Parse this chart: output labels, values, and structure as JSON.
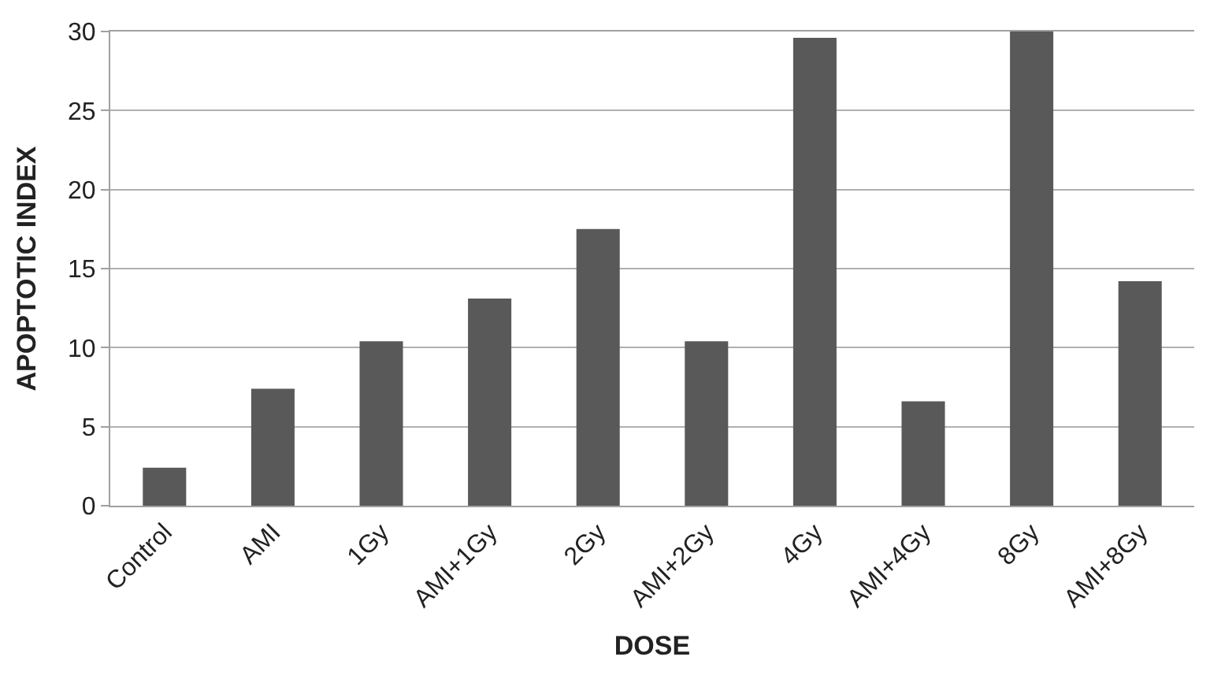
{
  "chart_data": {
    "type": "bar",
    "xlabel": "DOSE",
    "ylabel": "APOPTOTIC INDEX",
    "categories": [
      "Control",
      "AMI",
      "1Gy",
      "AMI+1Gy",
      "2Gy",
      "AMI+2Gy",
      "4Gy",
      "AMI+4Gy",
      "8Gy",
      "AMI+8Gy"
    ],
    "values": [
      2.4,
      7.4,
      10.4,
      13.1,
      17.5,
      10.4,
      29.6,
      6.6,
      30,
      14.2
    ],
    "color": "#595959",
    "ylim": [
      0,
      30
    ],
    "yticks": [
      0,
      5,
      10,
      15,
      20,
      25,
      30
    ],
    "grid": "y"
  }
}
